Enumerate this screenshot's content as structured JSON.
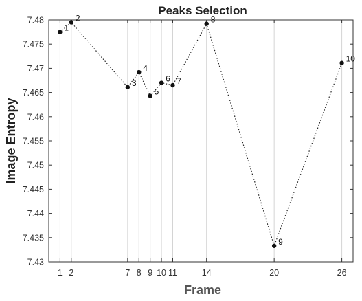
{
  "chart_data": {
    "type": "line",
    "title": "Peaks Selection",
    "xlabel": "Frame",
    "ylabel": "Image Entropy",
    "xticks": [
      1,
      2,
      7,
      8,
      9,
      10,
      11,
      14,
      20,
      26
    ],
    "yticks": [
      "7.43",
      "7.435",
      "7.44",
      "7.445",
      "7.45",
      "7.455",
      "7.46",
      "7.465",
      "7.47",
      "7.475",
      "7.48"
    ],
    "ylim": [
      7.43,
      7.48
    ],
    "grid": "vertical at x ticks",
    "line_style": "dotted",
    "marker": "filled circle",
    "colors": {
      "line": "#222222",
      "marker": "#111111",
      "grid": "#d4d4d4",
      "axes": "#333333"
    },
    "points": [
      {
        "label": "1",
        "x": 1,
        "y": 7.4775
      },
      {
        "label": "2",
        "x": 2,
        "y": 7.4795
      },
      {
        "label": "3",
        "x": 7,
        "y": 7.4661
      },
      {
        "label": "4",
        "x": 8,
        "y": 7.4692
      },
      {
        "label": "5",
        "x": 9,
        "y": 7.4643
      },
      {
        "label": "6",
        "x": 10,
        "y": 7.467
      },
      {
        "label": "7",
        "x": 11,
        "y": 7.4665
      },
      {
        "label": "8",
        "x": 14,
        "y": 7.4792
      },
      {
        "label": "9",
        "x": 20,
        "y": 7.4333
      },
      {
        "label": "10",
        "x": 26,
        "y": 7.4711
      }
    ]
  }
}
